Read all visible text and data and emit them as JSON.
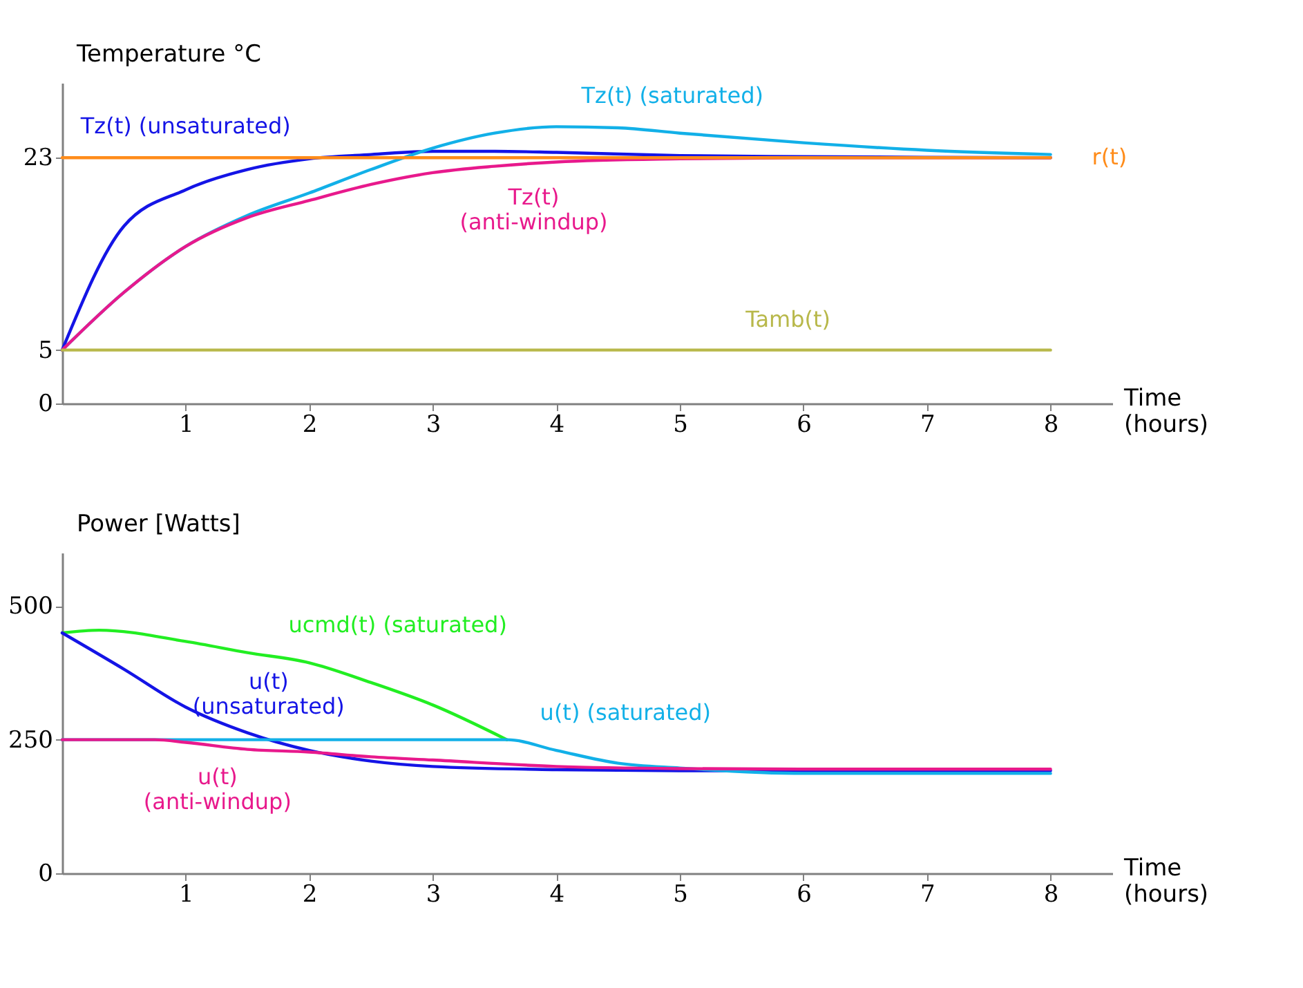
{
  "chart_data": [
    {
      "type": "line",
      "ylabel": "Temperature °C",
      "xlabel": "Time (hours)",
      "xlim": [
        0,
        8.5
      ],
      "xticks": [
        1,
        2,
        3,
        4,
        5,
        6,
        7,
        8
      ],
      "ylim": [
        0,
        30
      ],
      "yticks": [
        0,
        5,
        23
      ],
      "grid": false,
      "line_style": "solid",
      "series": [
        {
          "name": "Tz(t) (unsaturated)",
          "color": "#1414e6",
          "x": [
            0,
            0.5,
            1,
            1.5,
            2,
            2.5,
            3,
            3.5,
            4,
            5,
            6,
            8
          ],
          "values": [
            5,
            16.6,
            20.0,
            21.9,
            22.9,
            23.3,
            23.6,
            23.6,
            23.5,
            23.2,
            23.1,
            23.0
          ]
        },
        {
          "name": "Tz(t) (saturated)",
          "color": "#12b0e8",
          "x": [
            0,
            0.5,
            1,
            1.5,
            2,
            2.5,
            3,
            3.5,
            4,
            4.5,
            5,
            6,
            7,
            8
          ],
          "values": [
            5,
            10.4,
            14.7,
            17.6,
            19.7,
            21.9,
            23.9,
            25.3,
            25.9,
            25.8,
            25.3,
            24.4,
            23.7,
            23.3
          ]
        },
        {
          "name": "Tz(t) (anti-windup)",
          "color": "#e8198c",
          "x": [
            0,
            0.5,
            1,
            1.5,
            2,
            2.5,
            3,
            3.5,
            4,
            5,
            6,
            8
          ],
          "values": [
            5,
            10.4,
            14.7,
            17.4,
            19.0,
            20.5,
            21.6,
            22.2,
            22.6,
            22.9,
            23.0,
            23.0
          ]
        },
        {
          "name": "r(t)",
          "color": "#ff8c1a",
          "x": [
            0,
            8
          ],
          "values": [
            23,
            23
          ]
        },
        {
          "name": "Tamb(t)",
          "color": "#b8b84a",
          "x": [
            0,
            8
          ],
          "values": [
            5,
            5
          ]
        }
      ]
    },
    {
      "type": "line",
      "ylabel": "Power [Watts]",
      "xlabel": "Time (hours)",
      "xlim": [
        0,
        8.5
      ],
      "xticks": [
        1,
        2,
        3,
        4,
        5,
        6,
        7,
        8
      ],
      "ylim": [
        0,
        600
      ],
      "yticks": [
        0,
        250,
        500
      ],
      "grid": false,
      "line_style": "solid",
      "series": [
        {
          "name": "ucmd(t) (saturated)",
          "color": "#22ee22",
          "x": [
            0,
            0.3,
            1,
            1.5,
            2,
            2.5,
            3,
            3.6
          ],
          "values": [
            450,
            455,
            434,
            413,
            394,
            357,
            315,
            250
          ]
        },
        {
          "name": "u(t) (unsaturated)",
          "color": "#1414e6",
          "x": [
            0,
            0.5,
            1,
            1.5,
            2,
            2.5,
            3,
            4,
            5,
            6,
            8
          ],
          "values": [
            450,
            382,
            311,
            263,
            230,
            210,
            200,
            194,
            192,
            192,
            192
          ]
        },
        {
          "name": "u(t) (saturated)",
          "color": "#12b0e8",
          "x": [
            0,
            3.6,
            4,
            4.5,
            5,
            6,
            8
          ],
          "values": [
            250,
            250,
            230,
            206,
            197,
            187,
            187
          ]
        },
        {
          "name": "u(t) (anti-windup)",
          "color": "#e8198c",
          "x": [
            0,
            0.75,
            1,
            1.5,
            2,
            2.5,
            3,
            4,
            5,
            6,
            8
          ],
          "values": [
            250,
            250,
            245,
            232,
            227,
            218,
            212,
            200,
            196,
            195,
            195
          ]
        }
      ]
    }
  ]
}
